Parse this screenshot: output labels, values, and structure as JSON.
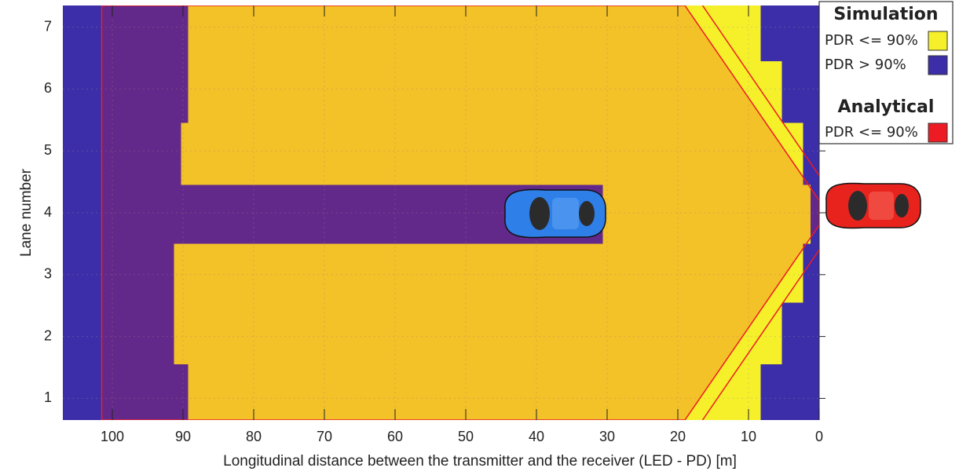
{
  "chart_data": {
    "type": "heatmap",
    "x_label": "Longitudinal distance between the transmitter and the receiver (LED - PD) [m]",
    "y_label": "Lane number",
    "xlim": [
      107,
      0
    ],
    "ylim": [
      0.65,
      7.35
    ],
    "xticks": [
      100,
      90,
      80,
      70,
      60,
      50,
      40,
      30,
      20,
      10,
      0
    ],
    "yticks": [
      1,
      2,
      3,
      4,
      5,
      6,
      7
    ],
    "grid": true,
    "simulation": {
      "title": "Simulation",
      "series": [
        {
          "name": "PDR <= 90%",
          "color": "#f5f02a",
          "regions": [
            {
              "x": [
                89.3,
                8.3
              ],
              "y": [
                6.45,
                7.35
              ]
            },
            {
              "x": [
                89.3,
                5.3
              ],
              "y": [
                5.45,
                6.45
              ]
            },
            {
              "x": [
                90.3,
                2.3
              ],
              "y": [
                4.45,
                5.45
              ]
            },
            {
              "x": [
                30.6,
                1.2
              ],
              "y": [
                3.5,
                4.45
              ]
            },
            {
              "x": [
                91.3,
                2.3
              ],
              "y": [
                2.55,
                3.5
              ]
            },
            {
              "x": [
                91.3,
                5.3
              ],
              "y": [
                1.55,
                2.55
              ]
            },
            {
              "x": [
                89.3,
                8.3
              ],
              "y": [
                0.65,
                1.55
              ]
            }
          ]
        },
        {
          "name": "PDR > 90%",
          "color": "#3c2da8"
        }
      ]
    },
    "analytical": {
      "title": "Analytical",
      "series": [
        {
          "name": "PDR <= 90%",
          "color": "#ed1c24",
          "x": [
            101.5,
            19,
            0,
            0,
            19,
            101.5
          ],
          "y": [
            7.35,
            7.35,
            4.2,
            3.8,
            0.65,
            0.65
          ],
          "inner_lines": [
            {
              "x": [
                16.5,
                0
              ],
              "y": [
                7.35,
                4.6
              ]
            },
            {
              "x": [
                16.5,
                0
              ],
              "y": [
                0.65,
                3.4
              ]
            }
          ]
        }
      ]
    }
  }
}
